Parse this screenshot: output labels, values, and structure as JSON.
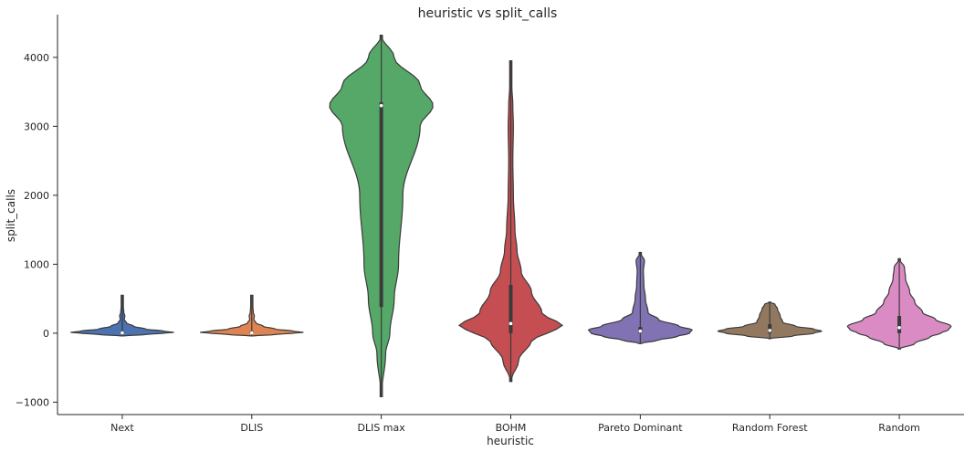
{
  "chart_data": {
    "type": "violin",
    "title": "heuristic vs split_calls",
    "xlabel": "heuristic",
    "ylabel": "split_calls",
    "ylim": [
      -1180,
      4620
    ],
    "yticks": [
      -1000,
      0,
      1000,
      2000,
      3000,
      4000
    ],
    "ytick_labels": [
      "−1000",
      "0",
      "1000",
      "2000",
      "3000",
      "4000"
    ],
    "grid": false,
    "categories": [
      "Next",
      "DLIS",
      "DLIS max",
      "BOHM",
      "Pareto Dominant",
      "Random Forest",
      "Random"
    ],
    "colors": [
      "#4c72b0",
      "#dd8452",
      "#55a868",
      "#c44e52",
      "#8172b3",
      "#937860",
      "#da8bc3"
    ],
    "violins": [
      {
        "name": "Next",
        "profile": [
          [
            -40,
            0.0
          ],
          [
            -20,
            0.45
          ],
          [
            0,
            0.78
          ],
          [
            10,
            1.0
          ],
          [
            30,
            0.8
          ],
          [
            60,
            0.45
          ],
          [
            100,
            0.22
          ],
          [
            150,
            0.08
          ],
          [
            200,
            0.04
          ],
          [
            250,
            0.05
          ],
          [
            300,
            0.03
          ],
          [
            400,
            0.02
          ],
          [
            500,
            0.02
          ],
          [
            550,
            0.0
          ]
        ],
        "q1": 0,
        "median": 5,
        "q3": 30,
        "whisker_low": -40,
        "whisker_high": 550
      },
      {
        "name": "DLIS",
        "profile": [
          [
            -40,
            0.0
          ],
          [
            -20,
            0.45
          ],
          [
            0,
            0.78
          ],
          [
            10,
            1.0
          ],
          [
            30,
            0.8
          ],
          [
            60,
            0.45
          ],
          [
            100,
            0.22
          ],
          [
            150,
            0.08
          ],
          [
            200,
            0.04
          ],
          [
            250,
            0.05
          ],
          [
            300,
            0.03
          ],
          [
            400,
            0.02
          ],
          [
            500,
            0.02
          ],
          [
            550,
            0.0
          ]
        ],
        "q1": 0,
        "median": 5,
        "q3": 30,
        "whisker_low": -40,
        "whisker_high": 550
      },
      {
        "name": "DLIS max",
        "profile": [
          [
            -920,
            0.0
          ],
          [
            -300,
            0.05
          ],
          [
            0,
            0.1
          ],
          [
            500,
            0.15
          ],
          [
            1000,
            0.2
          ],
          [
            2000,
            0.25
          ],
          [
            3000,
            0.45
          ],
          [
            3300,
            0.6
          ],
          [
            3600,
            0.45
          ],
          [
            4000,
            0.15
          ],
          [
            4320,
            0.0
          ]
        ],
        "q1": 380,
        "median": 3300,
        "q3": 3350,
        "whisker_low": -920,
        "whisker_high": 4320
      },
      {
        "name": "BOHM",
        "profile": [
          [
            -700,
            0.0
          ],
          [
            -400,
            0.15
          ],
          [
            -100,
            0.4
          ],
          [
            0,
            0.7
          ],
          [
            100,
            1.0
          ],
          [
            300,
            0.6
          ],
          [
            600,
            0.4
          ],
          [
            900,
            0.2
          ],
          [
            1200,
            0.12
          ],
          [
            1500,
            0.08
          ],
          [
            2000,
            0.05
          ],
          [
            2500,
            0.04
          ],
          [
            3000,
            0.05
          ],
          [
            3300,
            0.04
          ],
          [
            3600,
            0.02
          ],
          [
            3950,
            0.0
          ]
        ],
        "q1": 0,
        "median": 140,
        "q3": 700,
        "whisker_low": -700,
        "whisker_high": 3950
      },
      {
        "name": "Pareto Dominant",
        "profile": [
          [
            -150,
            0.0
          ],
          [
            -100,
            0.35
          ],
          [
            -50,
            0.7
          ],
          [
            0,
            0.95
          ],
          [
            50,
            1.0
          ],
          [
            100,
            0.75
          ],
          [
            200,
            0.35
          ],
          [
            300,
            0.15
          ],
          [
            500,
            0.1
          ],
          [
            700,
            0.07
          ],
          [
            900,
            0.06
          ],
          [
            1050,
            0.08
          ],
          [
            1170,
            0.0
          ]
        ],
        "q1": 0,
        "median": 30,
        "q3": 90,
        "whisker_low": -150,
        "whisker_high": 1170
      },
      {
        "name": "Random Forest",
        "profile": [
          [
            -80,
            0.0
          ],
          [
            -40,
            0.45
          ],
          [
            0,
            0.85
          ],
          [
            30,
            1.0
          ],
          [
            60,
            0.85
          ],
          [
            100,
            0.5
          ],
          [
            160,
            0.25
          ],
          [
            250,
            0.2
          ],
          [
            350,
            0.15
          ],
          [
            420,
            0.1
          ],
          [
            450,
            0.0
          ]
        ],
        "q1": 0,
        "median": 40,
        "q3": 130,
        "whisker_low": -80,
        "whisker_high": 450
      },
      {
        "name": "Random",
        "profile": [
          [
            -230,
            0.0
          ],
          [
            -150,
            0.3
          ],
          [
            -50,
            0.6
          ],
          [
            0,
            0.8
          ],
          [
            50,
            0.95
          ],
          [
            100,
            1.0
          ],
          [
            200,
            0.7
          ],
          [
            300,
            0.45
          ],
          [
            450,
            0.3
          ],
          [
            600,
            0.2
          ],
          [
            800,
            0.12
          ],
          [
            950,
            0.1
          ],
          [
            1080,
            0.0
          ]
        ],
        "q1": 0,
        "median": 80,
        "q3": 250,
        "whisker_low": -230,
        "whisker_high": 1080
      }
    ]
  }
}
